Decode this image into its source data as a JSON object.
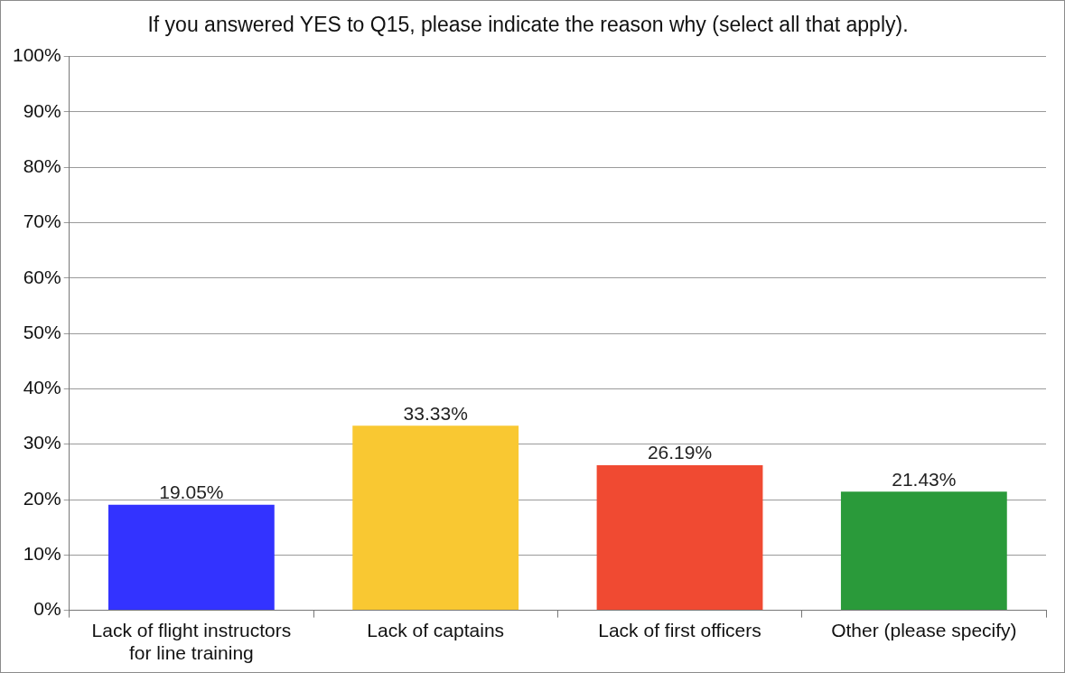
{
  "chart_data": {
    "type": "bar",
    "title": "If you answered YES to Q15, please indicate the reason why (select all that apply).",
    "categories": [
      "Lack of flight instructors for line training",
      "Lack of captains",
      "Lack of first officers",
      "Other (please specify)"
    ],
    "values": [
      19.05,
      33.33,
      26.19,
      21.43
    ],
    "colors": [
      "#3333ff",
      "#f9c832",
      "#f04a32",
      "#2a9a3a"
    ],
    "value_labels": [
      "19.05%",
      "33.33%",
      "26.19%",
      "21.43%"
    ],
    "ylim": [
      0,
      100
    ],
    "yticks": [
      {
        "value": 0,
        "label": "0%"
      },
      {
        "value": 10,
        "label": "10%"
      },
      {
        "value": 20,
        "label": "20%"
      },
      {
        "value": 30,
        "label": "30%"
      },
      {
        "value": 40,
        "label": "40%"
      },
      {
        "value": 50,
        "label": "50%"
      },
      {
        "value": 60,
        "label": "60%"
      },
      {
        "value": 70,
        "label": "70%"
      },
      {
        "value": 80,
        "label": "80%"
      },
      {
        "value": 90,
        "label": "90%"
      },
      {
        "value": 100,
        "label": "100%"
      }
    ],
    "grid": "y",
    "legend": false
  }
}
